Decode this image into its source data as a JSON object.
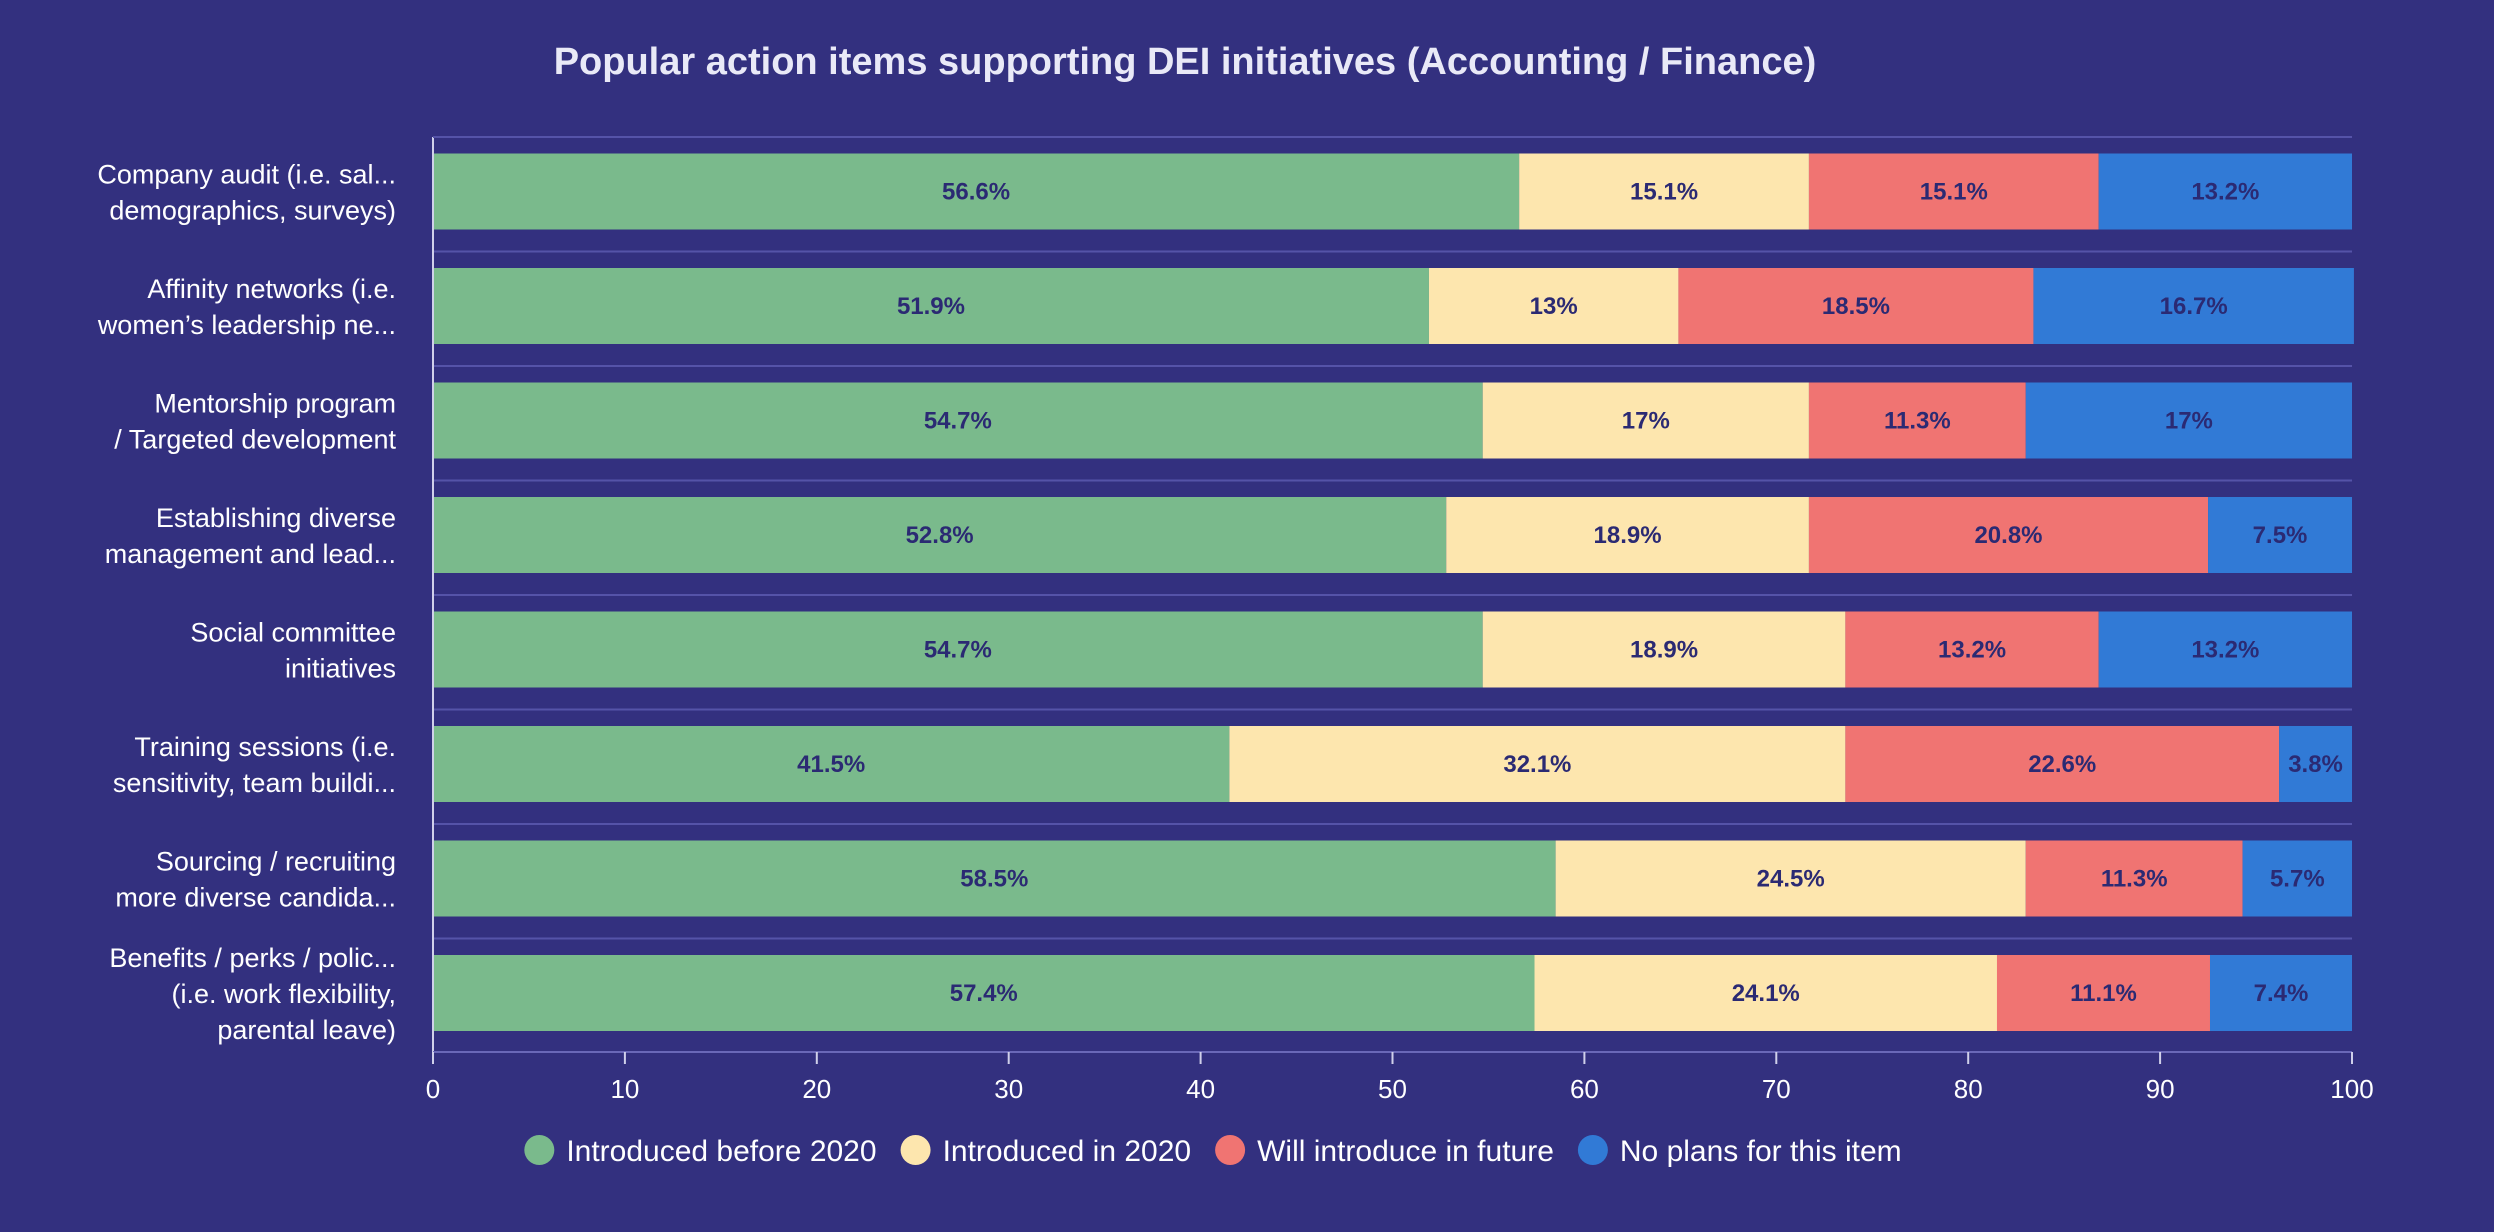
{
  "chart_data": {
    "type": "bar",
    "orientation": "horizontal",
    "stacked": true,
    "title": "Popular action items supporting DEI initiatives (Accounting / Finance)",
    "categories": [
      [
        "Company audit (i.e. sal...",
        "demographics, surveys)"
      ],
      [
        "Affinity networks (i.e.",
        "women’s leadership ne..."
      ],
      [
        "Mentorship program",
        "/ Targeted development"
      ],
      [
        "Establishing diverse",
        "management and lead..."
      ],
      [
        "Social committee",
        "initiatives"
      ],
      [
        "Training sessions (i.e.",
        "sensitivity, team buildi..."
      ],
      [
        "Sourcing / recruiting",
        "more diverse candida..."
      ],
      [
        "Benefits / perks / polic...",
        "(i.e. work flexibility,",
        "parental leave)"
      ]
    ],
    "series": [
      {
        "name": "Introduced before 2020",
        "color": "#7aba8c",
        "values": [
          56.6,
          51.9,
          54.7,
          52.8,
          54.7,
          41.5,
          58.5,
          57.4
        ],
        "labels": [
          "56.6%",
          "51.9%",
          "54.7%",
          "52.8%",
          "54.7%",
          "41.5%",
          "58.5%",
          "57.4%"
        ]
      },
      {
        "name": "Introduced in 2020",
        "color": "#fde6ae",
        "values": [
          15.1,
          13,
          17,
          18.9,
          18.9,
          32.1,
          24.5,
          24.1
        ],
        "labels": [
          "15.1%",
          "13%",
          "17%",
          "18.9%",
          "18.9%",
          "32.1%",
          "24.5%",
          "24.1%"
        ]
      },
      {
        "name": "Will introduce in future",
        "color": "#f07472",
        "values": [
          15.1,
          18.5,
          11.3,
          20.8,
          13.2,
          22.6,
          11.3,
          11.1
        ],
        "labels": [
          "15.1%",
          "18.5%",
          "11.3%",
          "20.8%",
          "13.2%",
          "22.6%",
          "11.3%",
          "11.1%"
        ]
      },
      {
        "name": "No plans for this item",
        "color": "#317ad6",
        "values": [
          13.2,
          16.7,
          17,
          7.5,
          13.2,
          3.8,
          5.7,
          7.4
        ],
        "labels": [
          "13.2%",
          "16.7%",
          "17%",
          "7.5%",
          "13.2%",
          "3.8%",
          "5.7%",
          "7.4%"
        ]
      }
    ],
    "xlim": [
      0,
      100
    ],
    "xticks": [
      "0",
      "10",
      "20",
      "30",
      "40",
      "50",
      "60",
      "70",
      "80",
      "90",
      "100"
    ],
    "legend_position": "bottom",
    "grid": false
  },
  "colors": {
    "background": "#33307f",
    "axis": "#6a68b8",
    "separator": "#5553a8",
    "value_text": "#2b2a73"
  }
}
